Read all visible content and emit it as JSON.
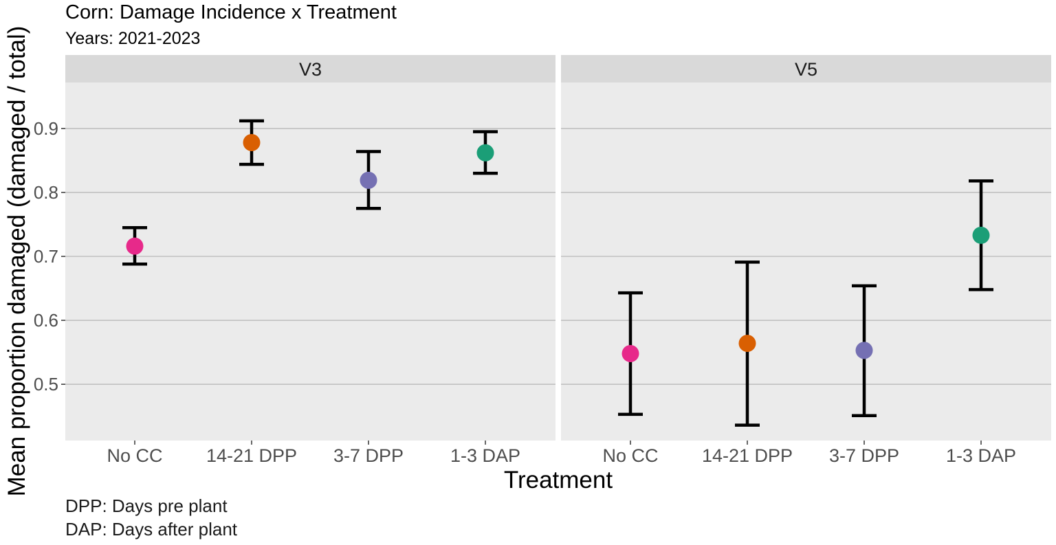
{
  "chart_data": {
    "type": "scatter",
    "title": "Corn: Damage Incidence x Treatment",
    "subtitle": "Years: 2021-2023",
    "xlabel": "Treatment",
    "ylabel": "Mean proportion damaged (damaged / total)",
    "categories": [
      "No CC",
      "14-21 DPP",
      "3-7 DPP",
      "1-3 DAP"
    ],
    "category_colors": [
      "#E7298A",
      "#D95F02",
      "#7570B3",
      "#1B9E77"
    ],
    "ylim": [
      0.412,
      0.972
    ],
    "yticks": [
      0.5,
      0.6,
      0.7,
      0.8,
      0.9
    ],
    "grid": true,
    "legend": "none",
    "panels": [
      {
        "name": "V3",
        "points": [
          {
            "category": "No CC",
            "mean": 0.716,
            "lower": 0.688,
            "upper": 0.745
          },
          {
            "category": "14-21 DPP",
            "mean": 0.878,
            "lower": 0.844,
            "upper": 0.912
          },
          {
            "category": "3-7 DPP",
            "mean": 0.819,
            "lower": 0.775,
            "upper": 0.864
          },
          {
            "category": "1-3 DAP",
            "mean": 0.862,
            "lower": 0.83,
            "upper": 0.895
          }
        ]
      },
      {
        "name": "V5",
        "points": [
          {
            "category": "No CC",
            "mean": 0.548,
            "lower": 0.453,
            "upper": 0.643
          },
          {
            "category": "14-21 DPP",
            "mean": 0.564,
            "lower": 0.436,
            "upper": 0.691
          },
          {
            "category": "3-7 DPP",
            "mean": 0.553,
            "lower": 0.451,
            "upper": 0.654
          },
          {
            "category": "1-3 DAP",
            "mean": 0.733,
            "lower": 0.648,
            "upper": 0.818
          }
        ]
      }
    ],
    "caption": [
      "DPP: Days pre plant",
      "DAP: Days after plant"
    ]
  }
}
